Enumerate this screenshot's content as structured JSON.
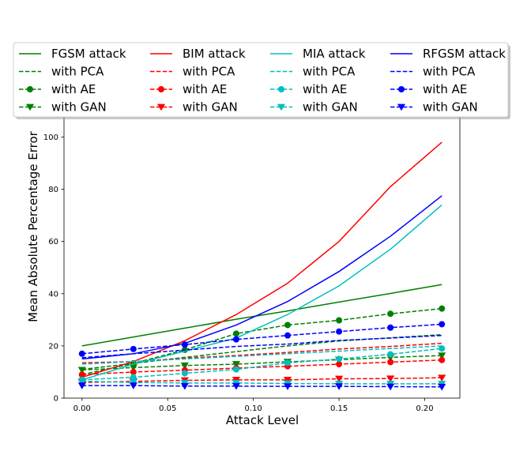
{
  "chart_data": {
    "type": "line",
    "xlabel": "Attack Level",
    "ylabel": "Mean Absolute Percentage Error",
    "xlim": [
      -0.0105,
      0.2205
    ],
    "ylim": [
      0,
      108
    ],
    "x_ticks": [
      "0.00",
      "0.05",
      "0.10",
      "0.15",
      "0.20"
    ],
    "x_tick_values": [
      0,
      0.05,
      0.1,
      0.15,
      0.2
    ],
    "y_ticks": [
      "0",
      "20",
      "40",
      "60",
      "80",
      "100"
    ],
    "y_tick_values": [
      0,
      20,
      40,
      60,
      80,
      100
    ],
    "grid": false,
    "legend_placement": "top, above plot, 4 columns",
    "x": [
      0,
      0.03,
      0.06,
      0.09,
      0.12,
      0.15,
      0.18,
      0.21
    ],
    "series": [
      {
        "name": "FGSM attack",
        "color": "#008000",
        "style": "solid",
        "marker": "none",
        "values": [
          20.0,
          23.4,
          26.8,
          30.2,
          33.4,
          36.8,
          40.1,
          43.5
        ]
      },
      {
        "name": "with PCA",
        "color": "#008000",
        "style": "dashed",
        "marker": "none",
        "values": [
          11.0,
          13.3,
          15.6,
          17.8,
          20.0,
          21.9,
          23.1,
          24.3
        ]
      },
      {
        "name": "with AE",
        "color": "#008000",
        "style": "dashed",
        "marker": "circle",
        "values": [
          9.0,
          13.3,
          18.5,
          24.7,
          28.0,
          29.8,
          32.3,
          34.3
        ]
      },
      {
        "name": "with GAN",
        "color": "#008000",
        "style": "dashed",
        "marker": "triangle-down",
        "values": [
          10.8,
          11.7,
          12.5,
          13.0,
          13.9,
          14.7,
          15.6,
          16.3
        ]
      },
      {
        "name": "BIM attack",
        "color": "#ff0000",
        "style": "solid",
        "marker": "none",
        "values": [
          8.0,
          14.0,
          22.0,
          32.0,
          44.0,
          60.0,
          81.0,
          98.0
        ]
      },
      {
        "name": "with PCA",
        "color": "#ff0000",
        "style": "dashed",
        "marker": "none",
        "values": [
          13.5,
          14.0,
          15.3,
          16.3,
          17.5,
          18.8,
          19.8,
          21.0
        ]
      },
      {
        "name": "with AE",
        "color": "#ff0000",
        "style": "dashed",
        "marker": "circle",
        "values": [
          9.0,
          10.0,
          10.7,
          11.5,
          12.2,
          13.0,
          13.8,
          14.6
        ]
      },
      {
        "name": "with GAN",
        "color": "#ff0000",
        "style": "dashed",
        "marker": "triangle-down",
        "values": [
          6.0,
          6.4,
          6.8,
          7.0,
          7.0,
          7.4,
          7.5,
          7.8
        ]
      },
      {
        "name": "MIA attack",
        "color": "#00bfbf",
        "style": "solid",
        "marker": "none",
        "values": [
          7.0,
          13.0,
          18.0,
          23.0,
          32.0,
          43.0,
          57.0,
          74.0
        ]
      },
      {
        "name": "with PCA",
        "color": "#00bfbf",
        "style": "dashed",
        "marker": "none",
        "values": [
          13.0,
          14.0,
          15.0,
          16.0,
          17.0,
          18.0,
          19.0,
          20.0
        ]
      },
      {
        "name": "with AE",
        "color": "#00bfbf",
        "style": "dashed",
        "marker": "circle",
        "values": [
          7.0,
          8.0,
          9.5,
          11.0,
          13.5,
          15.0,
          16.8,
          19.0
        ]
      },
      {
        "name": "with GAN",
        "color": "#00bfbf",
        "style": "dashed",
        "marker": "triangle-down",
        "values": [
          6.5,
          6.0,
          5.8,
          5.8,
          5.6,
          5.5,
          5.5,
          5.5
        ]
      },
      {
        "name": "RFGSM attack",
        "color": "#0000ff",
        "style": "solid",
        "marker": "none",
        "values": [
          15.0,
          17.0,
          21.0,
          28.0,
          37.0,
          48.5,
          62.0,
          77.5
        ]
      },
      {
        "name": "with PCA",
        "color": "#0000ff",
        "style": "dashed",
        "marker": "none",
        "values": [
          15.5,
          17.0,
          18.4,
          19.8,
          20.7,
          22.1,
          23.0,
          24.0
        ]
      },
      {
        "name": "with AE",
        "color": "#0000ff",
        "style": "dashed",
        "marker": "circle",
        "values": [
          17.0,
          18.8,
          20.5,
          22.5,
          24.0,
          25.5,
          27.0,
          28.3
        ]
      },
      {
        "name": "with GAN",
        "color": "#0000ff",
        "style": "dashed",
        "marker": "triangle-down",
        "values": [
          4.8,
          4.8,
          4.6,
          4.6,
          4.5,
          4.5,
          4.4,
          4.3
        ]
      }
    ]
  }
}
